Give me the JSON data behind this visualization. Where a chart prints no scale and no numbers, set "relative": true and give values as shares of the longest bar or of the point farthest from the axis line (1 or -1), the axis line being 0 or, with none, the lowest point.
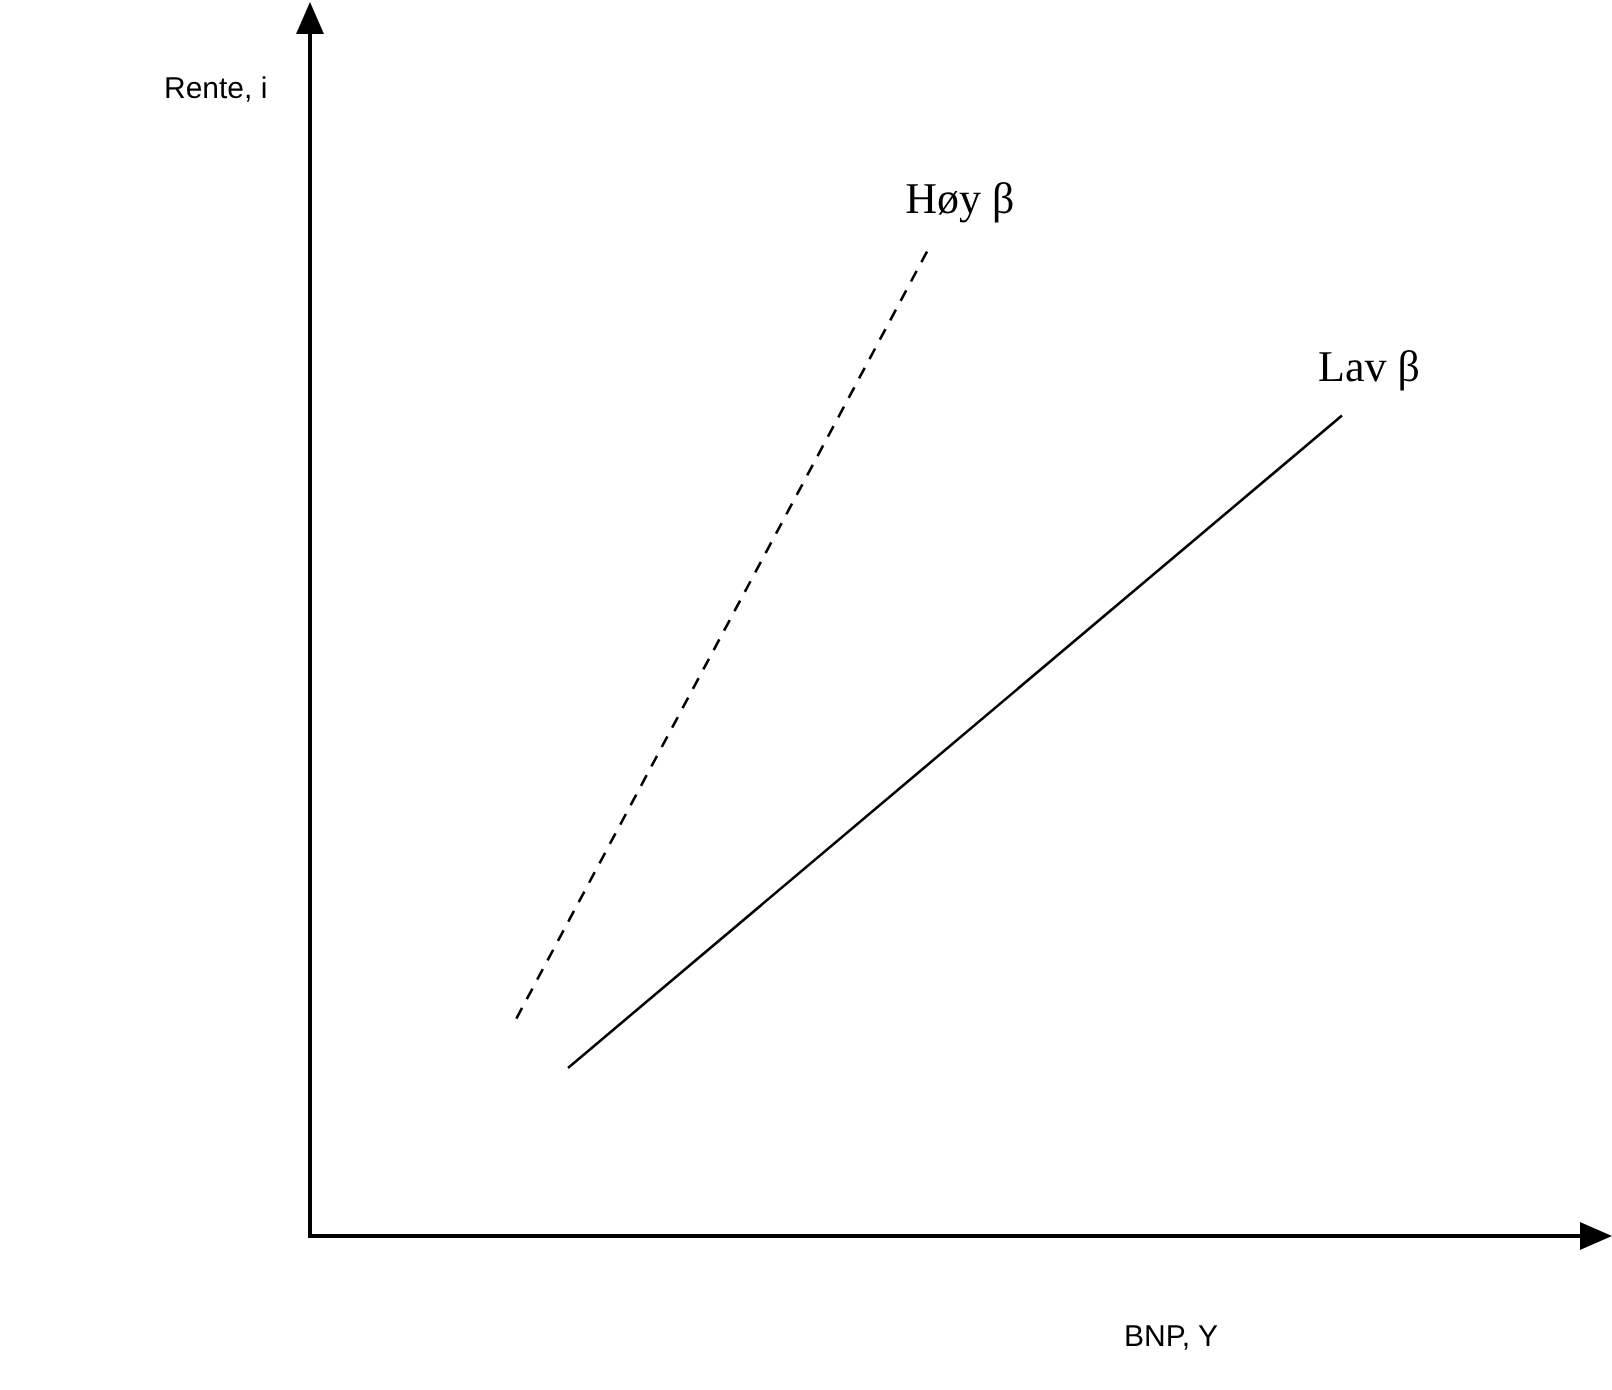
{
  "chart_data": {
    "type": "line",
    "relative": true,
    "xlabel": "BNP, Y",
    "ylabel": "Rente, i",
    "legend": false,
    "grid": false,
    "tick_labels": false,
    "marker": "none",
    "categories": [
      null,
      null,
      null,
      null,
      null,
      null,
      null,
      null,
      null,
      null,
      null,
      null,
      null,
      null,
      null,
      null,
      null,
      null,
      null,
      null,
      null,
      null,
      null,
      null,
      null,
      null
    ],
    "series": [
      {
        "name": "Høy β",
        "color": "#000000",
        "line_style": "dashed",
        "values": [
          null,
          null,
          null,
          null,
          0.22,
          null,
          null,
          null,
          null,
          null,
          null,
          null,
          1,
          null,
          null,
          null,
          null,
          null,
          null,
          null,
          null,
          null,
          null,
          null,
          null,
          null
        ]
      },
      {
        "name": "Lav β",
        "color": "#000000",
        "line_style": "solid",
        "values": [
          null,
          null,
          null,
          null,
          null,
          0.17,
          null,
          null,
          null,
          null,
          null,
          null,
          null,
          null,
          null,
          null,
          null,
          null,
          null,
          null,
          0.83,
          null,
          null,
          null,
          null,
          null
        ]
      }
    ]
  }
}
